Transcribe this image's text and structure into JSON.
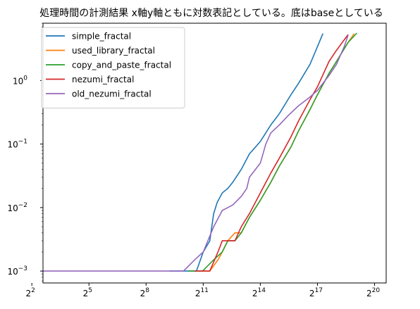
{
  "chart_data": {
    "type": "line",
    "title": "処理時間の計測結果 x軸y軸ともに対数表記としている。底はbaseとしている",
    "xlabel": "",
    "ylabel": "",
    "xscale": "log2",
    "yscale": "log10",
    "xlim": [
      6,
      1600000
    ],
    "ylim": [
      0.00065,
      8
    ],
    "grid": false,
    "legend_position": "upper-left",
    "x_ticks": [
      {
        "base": "2",
        "exp": "2",
        "value": 4
      },
      {
        "base": "2",
        "exp": "5",
        "value": 32
      },
      {
        "base": "2",
        "exp": "8",
        "value": 256
      },
      {
        "base": "2",
        "exp": "11",
        "value": 2048
      },
      {
        "base": "2",
        "exp": "14",
        "value": 16384
      },
      {
        "base": "2",
        "exp": "17",
        "value": 131072
      },
      {
        "base": "2",
        "exp": "20",
        "value": 1048576
      }
    ],
    "y_ticks": [
      {
        "base": "10",
        "exp": "0",
        "value": 1
      },
      {
        "base": "10",
        "exp": "−1",
        "value": 0.1
      },
      {
        "base": "10",
        "exp": "−2",
        "value": 0.01
      },
      {
        "base": "10",
        "exp": "−3",
        "value": 0.001
      }
    ],
    "series": [
      {
        "name": "simple_fractal",
        "color": "#1f77b4",
        "points": [
          [
            600,
            0.001
          ],
          [
            1024,
            0.001
          ],
          [
            1600,
            0.001
          ],
          [
            2048,
            0.002
          ],
          [
            2600,
            0.003
          ],
          [
            3000,
            0.008
          ],
          [
            3400,
            0.012
          ],
          [
            4096,
            0.017
          ],
          [
            5000,
            0.02
          ],
          [
            6000,
            0.025
          ],
          [
            8192,
            0.04
          ],
          [
            11000,
            0.07
          ],
          [
            16384,
            0.11
          ],
          [
            24000,
            0.2
          ],
          [
            32768,
            0.3
          ],
          [
            50000,
            0.6
          ],
          [
            65536,
            0.9
          ],
          [
            100000,
            1.8
          ],
          [
            140000,
            4
          ],
          [
            160000,
            5.5
          ]
        ]
      },
      {
        "name": "used_library_fractal",
        "color": "#ff7f0e",
        "points": [
          [
            1800,
            0.001
          ],
          [
            2600,
            0.001
          ],
          [
            3500,
            0.0015
          ],
          [
            4096,
            0.002
          ],
          [
            5000,
            0.003
          ],
          [
            6500,
            0.004
          ],
          [
            8192,
            0.004
          ],
          [
            11000,
            0.007
          ],
          [
            16384,
            0.013
          ],
          [
            24000,
            0.025
          ],
          [
            32768,
            0.045
          ],
          [
            50000,
            0.09
          ],
          [
            65536,
            0.16
          ],
          [
            100000,
            0.35
          ],
          [
            131072,
            0.6
          ],
          [
            200000,
            1.3
          ],
          [
            262144,
            2
          ],
          [
            400000,
            4
          ],
          [
            500000,
            5.5
          ]
        ]
      },
      {
        "name": "copy_and_paste_fractal",
        "color": "#2ca02c",
        "points": [
          [
            1200,
            0.001
          ],
          [
            2000,
            0.001
          ],
          [
            3000,
            0.0015
          ],
          [
            4096,
            0.002
          ],
          [
            5000,
            0.003
          ],
          [
            6500,
            0.003
          ],
          [
            8192,
            0.004
          ],
          [
            11000,
            0.007
          ],
          [
            16384,
            0.013
          ],
          [
            24000,
            0.025
          ],
          [
            32768,
            0.045
          ],
          [
            50000,
            0.09
          ],
          [
            65536,
            0.16
          ],
          [
            100000,
            0.35
          ],
          [
            131072,
            0.6
          ],
          [
            200000,
            1.3
          ],
          [
            262144,
            2
          ],
          [
            400000,
            4
          ],
          [
            550000,
            5.6
          ]
        ]
      },
      {
        "name": "nezumi_fractal",
        "color": "#d62728",
        "points": [
          [
            1500,
            0.001
          ],
          [
            2600,
            0.001
          ],
          [
            3500,
            0.002
          ],
          [
            4096,
            0.003
          ],
          [
            5000,
            0.003
          ],
          [
            6500,
            0.003
          ],
          [
            8192,
            0.005
          ],
          [
            11000,
            0.008
          ],
          [
            16384,
            0.017
          ],
          [
            24000,
            0.035
          ],
          [
            32768,
            0.06
          ],
          [
            50000,
            0.13
          ],
          [
            65536,
            0.23
          ],
          [
            100000,
            0.5
          ],
          [
            131072,
            0.8
          ],
          [
            200000,
            2
          ],
          [
            262144,
            3
          ],
          [
            400000,
            5.3
          ]
        ]
      },
      {
        "name": "old_nezumi_fractal",
        "color": "#9467bd",
        "points": [
          [
            4,
            0.001
          ],
          [
            300,
            0.001
          ],
          [
            1000,
            0.001
          ],
          [
            1500,
            0.0015
          ],
          [
            2048,
            0.002
          ],
          [
            3000,
            0.005
          ],
          [
            4096,
            0.009
          ],
          [
            5000,
            0.01
          ],
          [
            6000,
            0.011
          ],
          [
            8192,
            0.015
          ],
          [
            10000,
            0.02
          ],
          [
            11000,
            0.03
          ],
          [
            16384,
            0.05
          ],
          [
            20000,
            0.1
          ],
          [
            24000,
            0.15
          ],
          [
            32768,
            0.2
          ],
          [
            45000,
            0.28
          ],
          [
            65536,
            0.4
          ],
          [
            100000,
            0.55
          ],
          [
            131072,
            0.7
          ],
          [
            200000,
            1.2
          ],
          [
            262144,
            1.8
          ],
          [
            350000,
            3.5
          ],
          [
            400000,
            5.2
          ]
        ]
      }
    ]
  }
}
